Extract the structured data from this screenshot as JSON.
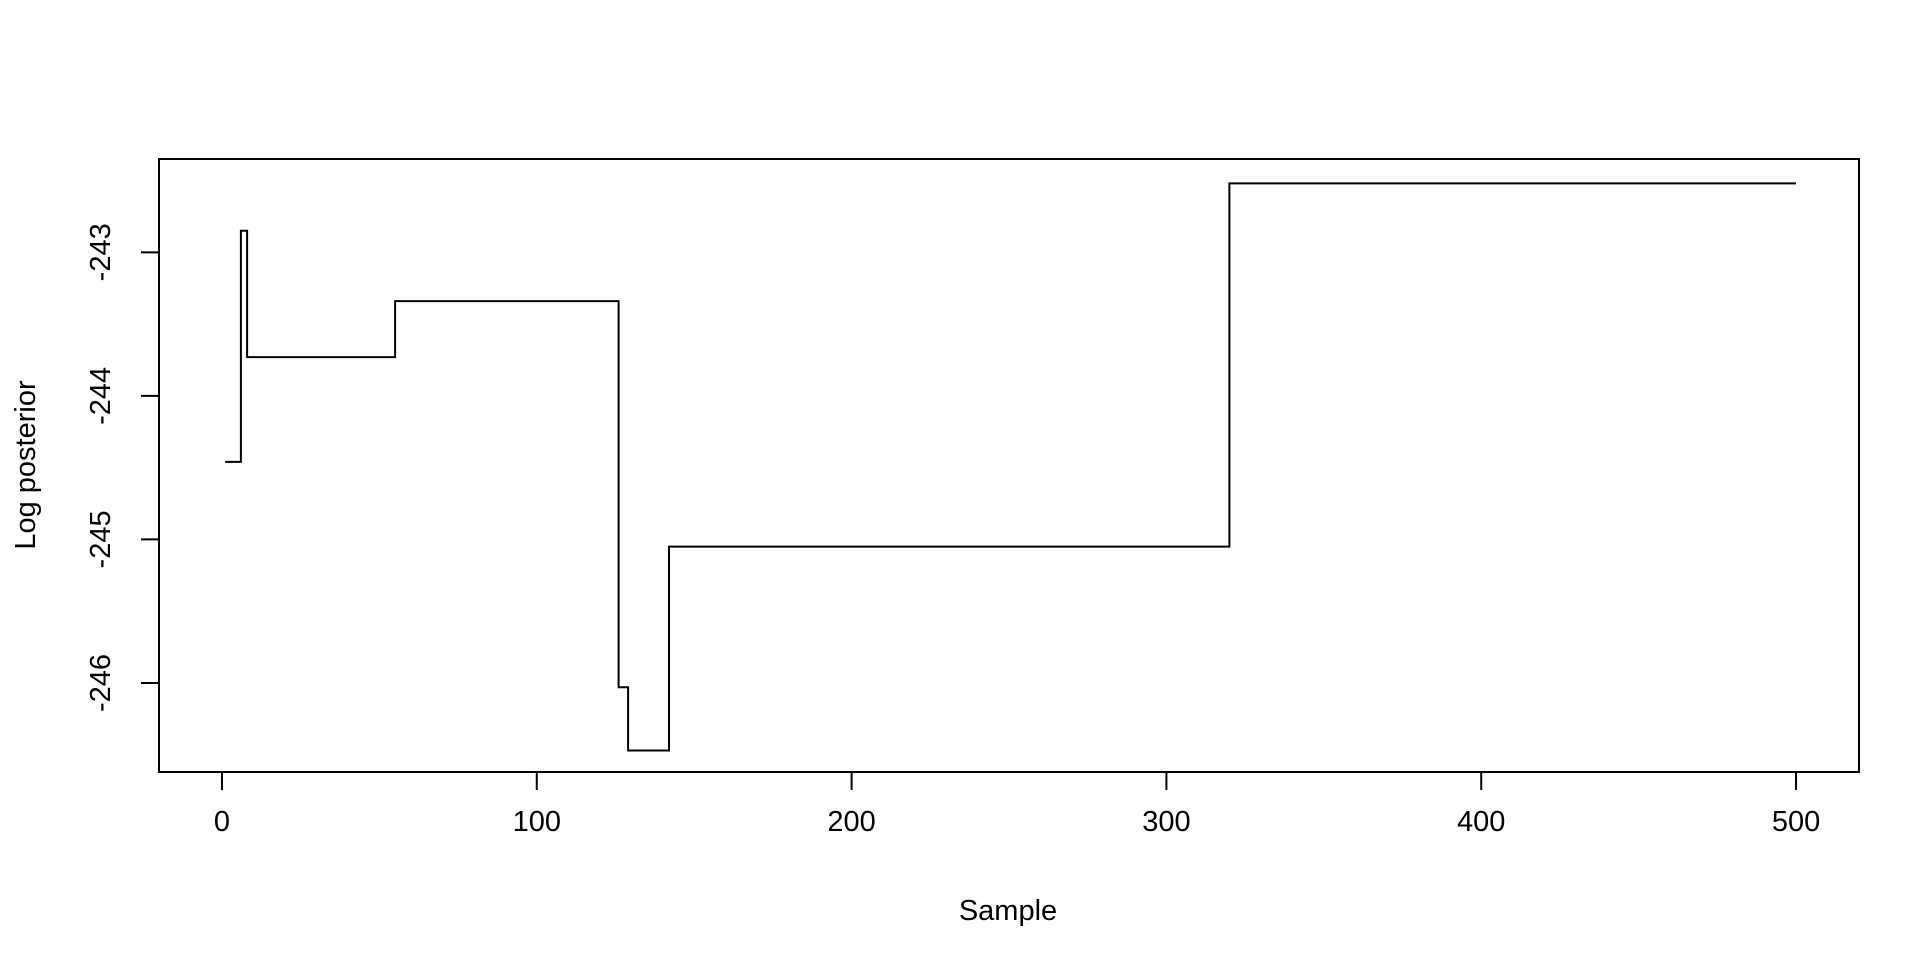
{
  "chart_data": {
    "type": "line",
    "style": "step",
    "title": "",
    "xlabel": "Sample",
    "ylabel": "Log posterior",
    "xlim": [
      -20,
      520
    ],
    "ylim": [
      -246.62,
      -242.35
    ],
    "x_ticks": [
      0,
      100,
      200,
      300,
      400,
      500
    ],
    "x_tick_labels": [
      "0",
      "100",
      "200",
      "300",
      "400",
      "500"
    ],
    "y_ticks": [
      -243,
      -244,
      -245,
      -246
    ],
    "y_tick_labels": [
      "-243",
      "-244",
      "-245",
      "-246"
    ],
    "grid": false,
    "legend": "none",
    "line_color": "#000000",
    "series": [
      {
        "x": [
          1,
          6,
          6,
          8,
          8,
          55,
          55,
          126,
          126,
          129,
          129,
          142,
          142,
          320,
          320,
          500
        ],
        "y": [
          -244.46,
          -244.46,
          -242.85,
          -242.85,
          -243.73,
          -243.73,
          -243.34,
          -243.34,
          -246.03,
          -246.03,
          -246.47,
          -246.47,
          -245.05,
          -245.05,
          -242.52,
          -242.52
        ]
      }
    ]
  }
}
